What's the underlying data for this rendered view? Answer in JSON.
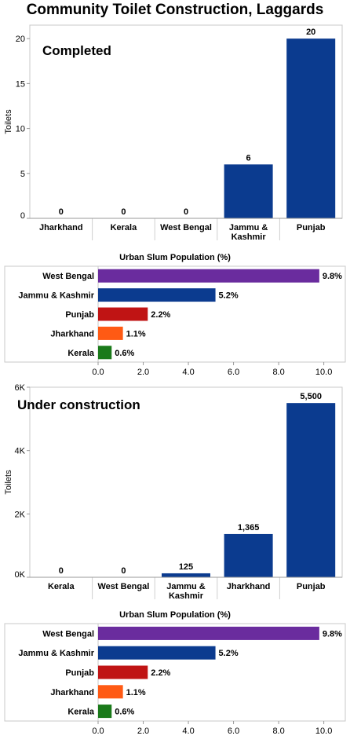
{
  "title": "Community Toilet Construction, Laggards",
  "chart_data": [
    {
      "type": "bar",
      "panel_label": "Completed",
      "ylabel": "Toilets",
      "ylim": [
        0,
        21.5
      ],
      "yticks": [
        0,
        5,
        10,
        15,
        20
      ],
      "ytick_labels": [
        "0",
        "5",
        "10",
        "15",
        "20"
      ],
      "categories": [
        "Jharkhand",
        "Kerala",
        "West Bengal",
        "Jammu & Kashmir",
        "Punjab"
      ],
      "category_lines": [
        [
          "Jharkhand"
        ],
        [
          "Kerala"
        ],
        [
          "West Bengal"
        ],
        [
          "Jammu &",
          "Kashmir"
        ],
        [
          "Punjab"
        ]
      ],
      "values": [
        0,
        0,
        0,
        6,
        20
      ],
      "value_labels": [
        "0",
        "0",
        "0",
        "6",
        "20"
      ],
      "color": "#0b3b8f",
      "grid": false
    },
    {
      "type": "bar",
      "orientation": "horizontal",
      "title": "Urban Slum Population (%)",
      "categories": [
        "West Bengal",
        "Jammu & Kashmir",
        "Punjab",
        "Jharkhand",
        "Kerala"
      ],
      "values": [
        9.8,
        5.2,
        2.2,
        1.1,
        0.6
      ],
      "value_labels": [
        "9.8%",
        "5.2%",
        "2.2%",
        "1.1%",
        "0.6%"
      ],
      "colors": [
        "#6a2c9e",
        "#0b3b8f",
        "#c01414",
        "#ff5a14",
        "#1a7a1a"
      ],
      "xlim": [
        0,
        10.5
      ],
      "xticks": [
        0,
        2,
        4,
        6,
        8,
        10
      ],
      "xtick_labels": [
        "0.0",
        "2.0",
        "4.0",
        "6.0",
        "8.0",
        "10.0"
      ],
      "grid": false
    },
    {
      "type": "bar",
      "panel_label": "Under construction",
      "ylabel": "Toilets",
      "ylim": [
        0,
        6000
      ],
      "yticks": [
        0,
        2000,
        4000,
        6000
      ],
      "ytick_labels": [
        "0K",
        "2K",
        "4K",
        "6K"
      ],
      "categories": [
        "Kerala",
        "West Bengal",
        "Jammu & Kashmir",
        "Jharkhand",
        "Punjab"
      ],
      "category_lines": [
        [
          "Kerala"
        ],
        [
          "West Bengal"
        ],
        [
          "Jammu &",
          "Kashmir"
        ],
        [
          "Jharkhand"
        ],
        [
          "Punjab"
        ]
      ],
      "values": [
        0,
        0,
        125,
        1365,
        5500
      ],
      "value_labels": [
        "0",
        "0",
        "125",
        "1,365",
        "5,500"
      ],
      "color": "#0b3b8f",
      "grid": false
    },
    {
      "type": "bar",
      "orientation": "horizontal",
      "title": "Urban Slum Population (%)",
      "categories": [
        "West Bengal",
        "Jammu & Kashmir",
        "Punjab",
        "Jharkhand",
        "Kerala"
      ],
      "values": [
        9.8,
        5.2,
        2.2,
        1.1,
        0.6
      ],
      "value_labels": [
        "9.8%",
        "5.2%",
        "2.2%",
        "1.1%",
        "0.6%"
      ],
      "colors": [
        "#6a2c9e",
        "#0b3b8f",
        "#c01414",
        "#ff5a14",
        "#1a7a1a"
      ],
      "xlim": [
        0,
        10.5
      ],
      "xticks": [
        0,
        2,
        4,
        6,
        8,
        10
      ],
      "xtick_labels": [
        "0.0",
        "2.0",
        "4.0",
        "6.0",
        "8.0",
        "10.0"
      ],
      "grid": false
    }
  ]
}
